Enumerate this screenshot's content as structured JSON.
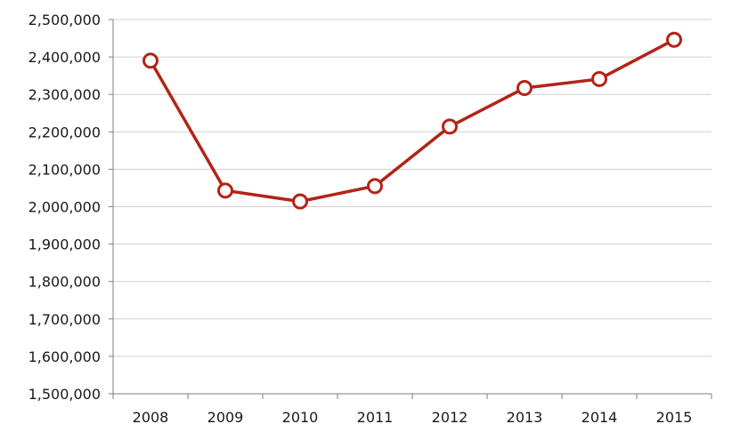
{
  "chart_data": {
    "type": "line",
    "title": "",
    "xlabel": "",
    "ylabel": "",
    "categories": [
      "2008",
      "2009",
      "2010",
      "2011",
      "2012",
      "2013",
      "2014",
      "2015"
    ],
    "series": [
      {
        "values": [
          2390000,
          2043000,
          2014000,
          2055000,
          2214000,
          2317000,
          2341000,
          2446000
        ],
        "color": "#b22418",
        "marker": "open-circle"
      }
    ],
    "ylim": [
      1500000,
      2500000
    ],
    "yticks": [
      1500000,
      1600000,
      1700000,
      1800000,
      1900000,
      2000000,
      2100000,
      2200000,
      2300000,
      2400000,
      2500000
    ],
    "ytick_labels": [
      "1,500,000",
      "1,600,000",
      "1,700,000",
      "1,800,000",
      "1,900,000",
      "2,000,000",
      "2,100,000",
      "2,200,000",
      "2,300,000",
      "2,400,000",
      "2,500,000"
    ],
    "grid": true,
    "grid_color": "#d0d0d0",
    "legend": "none"
  }
}
